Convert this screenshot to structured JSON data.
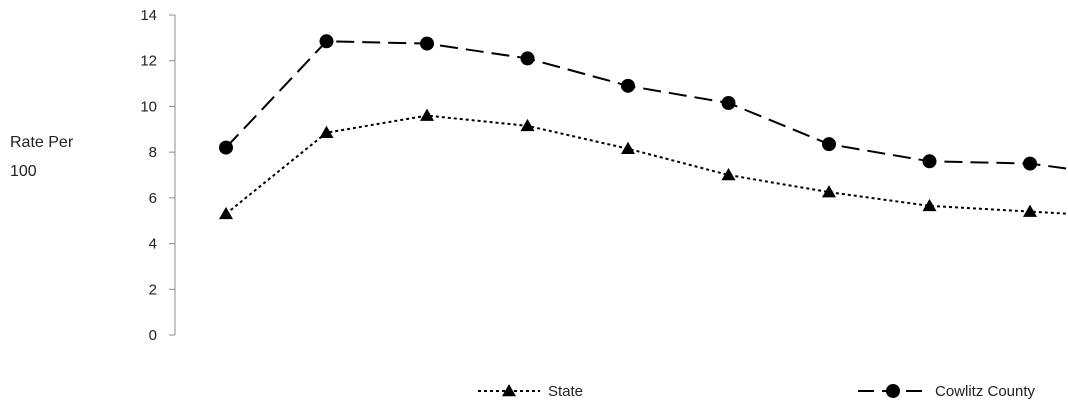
{
  "chart_data": {
    "type": "line",
    "title": "",
    "xlabel": "",
    "ylabel_lines": [
      "Rate Per",
      "100"
    ],
    "ylim": [
      0,
      14
    ],
    "yticks": [
      "0",
      "2",
      "4",
      "6",
      "8",
      "10",
      "12",
      "14"
    ],
    "grid": false,
    "legend_position": "bottom",
    "x": [
      1,
      2,
      3,
      4,
      5,
      6,
      7,
      8,
      9,
      10
    ],
    "series": [
      {
        "name": "State",
        "marker": "triangle",
        "line_style": "dotted",
        "color": "#000000",
        "values": [
          5.3,
          8.85,
          9.6,
          9.15,
          8.15,
          7.0,
          6.25,
          5.65,
          5.4,
          5.15
        ],
        "marker_visible": [
          true,
          true,
          true,
          true,
          true,
          true,
          true,
          true,
          true,
          false
        ]
      },
      {
        "name": "Cowlitz County",
        "marker": "circle",
        "line_style": "dashed",
        "color": "#000000",
        "values": [
          8.2,
          12.85,
          12.75,
          12.1,
          10.9,
          10.15,
          8.35,
          7.6,
          7.5,
          6.9
        ],
        "marker_visible": [
          true,
          true,
          true,
          true,
          true,
          true,
          true,
          true,
          true,
          false
        ]
      }
    ]
  }
}
